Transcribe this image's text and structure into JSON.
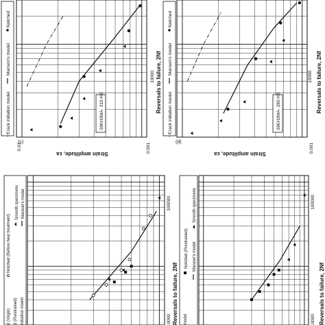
{
  "figure": {
    "y_axis_label": "Strain amplitude, εa",
    "x_axis_label": "Reversals to failure, 2Nf"
  },
  "chart_data": [
    {
      "id": "c",
      "type": "scatter",
      "panel_label": "(c)",
      "material_label": "30KH2MA- 310 HB",
      "legend": [
        "Crack initiation model",
        "Manson's model",
        "Notched"
      ],
      "x_ticks": [
        "10000"
      ],
      "y_ticks": [
        "0.01",
        "0.001"
      ],
      "xlabel": "Reversals to failure, 2Nf",
      "ylabel": "Strain amplitude, εa",
      "x_scale": "log",
      "y_scale": "log",
      "xlim": [
        1000,
        30000
      ],
      "ylim": [
        0.0009,
        0.011
      ],
      "series": [
        {
          "name": "Notched",
          "marker": "circle",
          "points": [
            [
              1300,
              0.0021
            ],
            [
              4500,
              0.0033
            ],
            [
              14000,
              0.0078
            ],
            [
              26000,
              0.0097
            ]
          ]
        },
        {
          "name": "Smooth specimens",
          "marker": "triangle",
          "points": [
            [
              1200,
              0.0012
            ],
            [
              1600,
              0.0026
            ],
            [
              2600,
              0.0033
            ],
            [
              5200,
              0.0045
            ],
            [
              9500,
              0.0072
            ]
          ]
        }
      ],
      "curves": [
        {
          "name": "Manson's model",
          "style": "solid",
          "points": [
            [
              1400,
              0.0021
            ],
            [
              4000,
              0.003
            ],
            [
              12000,
              0.006
            ],
            [
              27000,
              0.0098
            ]
          ]
        },
        {
          "name": "Crack initiation model",
          "style": "dash-dot",
          "points": [
            [
              3500,
              0.0011
            ],
            [
              10000,
              0.0016
            ],
            [
              20000,
              0.0022
            ]
          ]
        }
      ]
    },
    {
      "id": "d",
      "type": "scatter",
      "panel_label": "(d)",
      "material_label": "30KH2MA- 280 HB",
      "legend": [
        "Crack initiation model",
        "Manson's model",
        "Notched"
      ],
      "x_ticks": [
        "10000"
      ],
      "y_ticks": [
        "0.01",
        "0.001"
      ],
      "xlabel": "Reversals to failure, 2Nf",
      "ylabel": "Strain amplitude, εa",
      "x_scale": "log",
      "y_scale": "log",
      "xlim": [
        1000,
        30000
      ],
      "ylim": [
        0.0009,
        0.011
      ],
      "series": [
        {
          "name": "Notched",
          "marker": "circle",
          "points": [
            [
              2000,
              0.0024
            ],
            [
              7000,
              0.0041
            ],
            [
              17000,
              0.0066
            ],
            [
              28000,
              0.0095
            ]
          ]
        },
        {
          "name": "Smooth specimens",
          "marker": "triangle",
          "points": [
            [
              1100,
              0.0012
            ],
            [
              1500,
              0.0021
            ],
            [
              2400,
              0.0033
            ],
            [
              6500,
              0.0055
            ],
            [
              11000,
              0.007
            ]
          ]
        }
      ],
      "curves": [
        {
          "name": "Manson's model",
          "style": "solid",
          "points": [
            [
              1800,
              0.0022
            ],
            [
              6000,
              0.0035
            ],
            [
              15000,
              0.0058
            ],
            [
              28000,
              0.009
            ]
          ]
        },
        {
          "name": "Crack initiation model",
          "style": "dash-dot",
          "points": [
            [
              4000,
              0.0011
            ],
            [
              10000,
              0.0015
            ],
            [
              22000,
              0.0021
            ]
          ]
        }
      ]
    },
    {
      "id": "a",
      "type": "scatter",
      "panel_label": "",
      "material_label": "",
      "legend": [
        "d (Virgin)",
        "d (Prestrained)",
        "initiation model",
        "Notched (Before heat treatment)",
        "Smooth specimens",
        "Manson's model"
      ],
      "x_ticks": [
        "10000",
        "100000"
      ],
      "y_ticks": [],
      "xlabel": "Reversals to failure, 2Nf",
      "ylabel": "",
      "x_scale": "log",
      "y_scale": "log",
      "xlim": [
        2000,
        120000
      ],
      "ylim": [
        0.0009,
        0.011
      ],
      "series": [
        {
          "name": "Smooth specimens",
          "marker": "triangle",
          "points": [
            [
              65000,
              0.01
            ],
            [
              9000,
              0.0052
            ],
            [
              7000,
              0.004
            ]
          ]
        },
        {
          "name": "Notched (Before heat treatment)",
          "marker": "open-circle",
          "points": [
            [
              40000,
              0.0085
            ],
            [
              28000,
              0.0075
            ],
            [
              12000,
              0.0058
            ],
            [
              9000,
              0.005
            ],
            [
              6000,
              0.0038
            ],
            [
              4500,
              0.003
            ]
          ]
        },
        {
          "name": "d (Prestrained)",
          "marker": "square",
          "points": [
            [
              10000,
              0.006
            ],
            [
              8500,
              0.0054
            ],
            [
              6500,
              0.0044
            ]
          ]
        }
      ],
      "curves": [
        {
          "name": "Manson's model",
          "style": "solid",
          "points": [
            [
              4000,
              0.0028
            ],
            [
              15000,
              0.006
            ],
            [
              45000,
              0.0095
            ]
          ]
        }
      ]
    },
    {
      "id": "b",
      "type": "scatter",
      "panel_label": "",
      "material_label": "",
      "legend": [
        "model",
        "Notched (Prestrained)",
        "Manson's model",
        "Smooth specimens"
      ],
      "x_ticks": [
        "10000",
        "100000"
      ],
      "y_ticks": [],
      "xlabel": "Reversals to failure, 2Nf",
      "ylabel": "",
      "x_scale": "log",
      "y_scale": "log",
      "xlim": [
        2000,
        120000
      ],
      "ylim": [
        0.0009,
        0.011
      ],
      "series": [
        {
          "name": "Smooth specimens",
          "marker": "triangle",
          "points": [
            [
              70000,
              0.01
            ],
            [
              18000,
              0.008
            ],
            [
              12000,
              0.007
            ]
          ]
        },
        {
          "name": "Notched (Prestrained)",
          "marker": "square",
          "points": [
            [
              9000,
              0.0056
            ],
            [
              8000,
              0.005
            ],
            [
              6000,
              0.0044
            ],
            [
              5000,
              0.0036
            ],
            [
              4000,
              0.003
            ]
          ]
        }
      ],
      "curves": [
        {
          "name": "Manson's model",
          "style": "solid",
          "points": [
            [
              4000,
              0.003
            ],
            [
              12000,
              0.0058
            ],
            [
              30000,
              0.009
            ]
          ]
        }
      ]
    }
  ]
}
